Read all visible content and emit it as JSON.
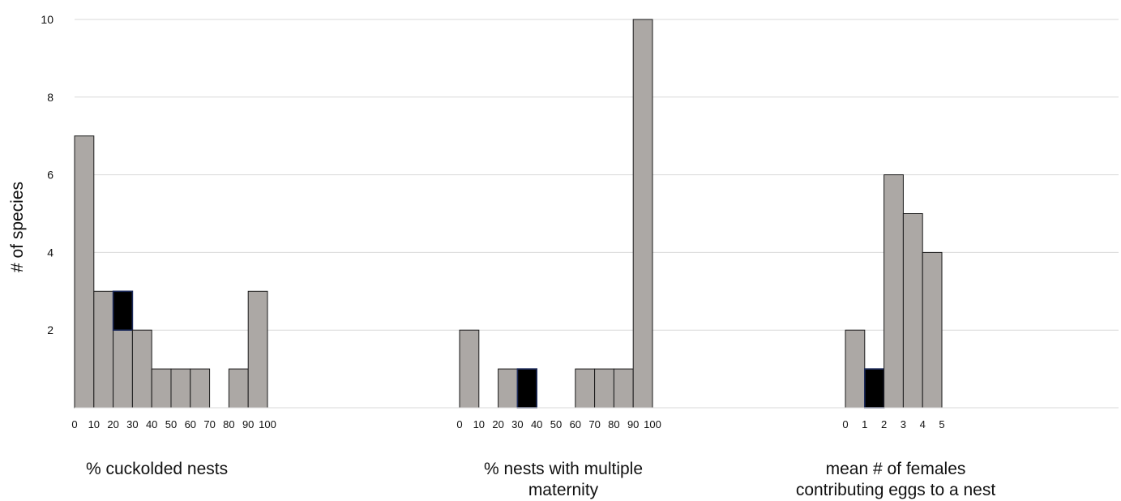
{
  "chart_data": {
    "type": "bar",
    "ylabel": "# of species",
    "ylim": [
      0,
      10
    ],
    "yticks": [
      2,
      4,
      6,
      8,
      10
    ],
    "grid": true,
    "colors": {
      "bar": "#aca8a5",
      "highlight": "#000000",
      "edge": "#1a1a1a",
      "highlight_edge": "#1c2a5a",
      "grid": "#d9d9d9"
    },
    "panels": [
      {
        "xlabel": "% cuckolded nests",
        "tick_labels": [
          "0",
          "10",
          "20",
          "30",
          "40",
          "50",
          "60",
          "70",
          "80",
          "90",
          "100"
        ],
        "bars": [
          {
            "bin": "0-10",
            "value": 7,
            "highlight": 0
          },
          {
            "bin": "10-20",
            "value": 3,
            "highlight": 0
          },
          {
            "bin": "20-30",
            "value": 3,
            "highlight": 1
          },
          {
            "bin": "30-40",
            "value": 2,
            "highlight": 0
          },
          {
            "bin": "40-50",
            "value": 1,
            "highlight": 0
          },
          {
            "bin": "50-60",
            "value": 1,
            "highlight": 0
          },
          {
            "bin": "60-70",
            "value": 1,
            "highlight": 0
          },
          {
            "bin": "70-80",
            "value": 0,
            "highlight": 0
          },
          {
            "bin": "80-90",
            "value": 1,
            "highlight": 0
          },
          {
            "bin": "90-100",
            "value": 3,
            "highlight": 0
          }
        ]
      },
      {
        "xlabel": "% nests with multiple maternity",
        "tick_labels": [
          "0",
          "10",
          "20",
          "30",
          "40",
          "50",
          "60",
          "70",
          "80",
          "90",
          "100"
        ],
        "bars": [
          {
            "bin": "0-10",
            "value": 2,
            "highlight": 0
          },
          {
            "bin": "10-20",
            "value": 0,
            "highlight": 0
          },
          {
            "bin": "20-30",
            "value": 1,
            "highlight": 0
          },
          {
            "bin": "30-40",
            "value": 1,
            "highlight": 1
          },
          {
            "bin": "40-50",
            "value": 0,
            "highlight": 0
          },
          {
            "bin": "50-60",
            "value": 0,
            "highlight": 0
          },
          {
            "bin": "60-70",
            "value": 1,
            "highlight": 0
          },
          {
            "bin": "70-80",
            "value": 1,
            "highlight": 0
          },
          {
            "bin": "80-90",
            "value": 1,
            "highlight": 0
          },
          {
            "bin": "90-100",
            "value": 10,
            "highlight": 0
          }
        ]
      },
      {
        "xlabel": "mean # of females contributing eggs to a nest",
        "tick_labels": [
          "0",
          "1",
          "2",
          "3",
          "4",
          "5"
        ],
        "bars": [
          {
            "bin": "0-1",
            "value": 2,
            "highlight": 0
          },
          {
            "bin": "1-2",
            "value": 1,
            "highlight": 1
          },
          {
            "bin": "2-3",
            "value": 6,
            "highlight": 0
          },
          {
            "bin": "3-4",
            "value": 5,
            "highlight": 0
          },
          {
            "bin": "4-5",
            "value": 4,
            "highlight": 0
          }
        ]
      }
    ]
  }
}
